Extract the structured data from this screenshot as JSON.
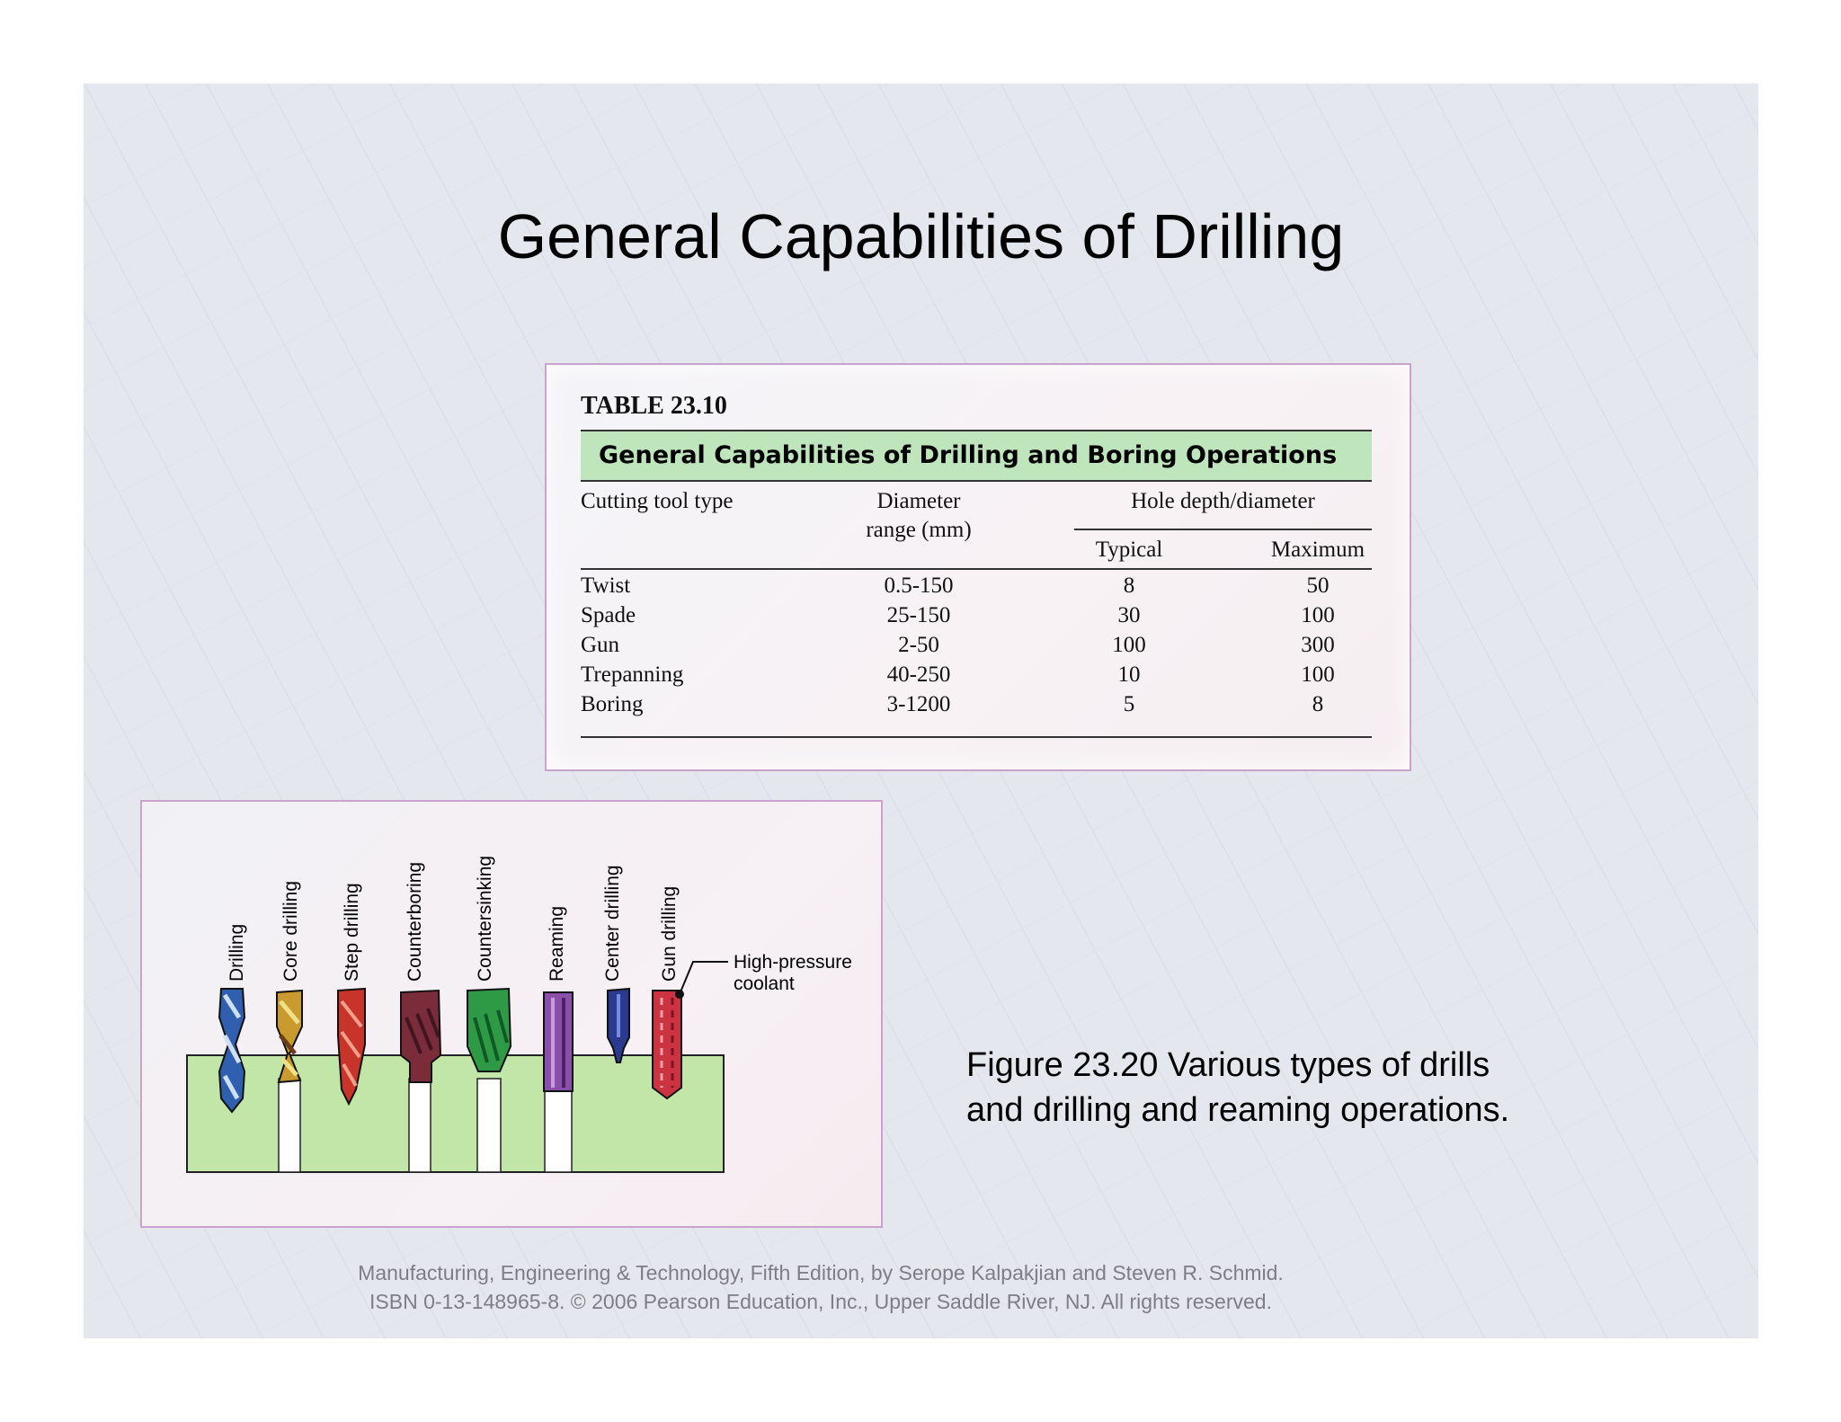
{
  "slide": {
    "title": "General Capabilities of Drilling",
    "caption_line1": "Figure 23.20  Various types of drills",
    "caption_line2": "and drilling and reaming operations.",
    "footer_line1": "Manufacturing, Engineering & Technology, Fifth Edition, by Serope Kalpakjian and Steven R. Schmid.",
    "footer_line2": "ISBN 0-13-148965-8. © 2006 Pearson Education, Inc., Upper Saddle River, NJ.  All rights reserved."
  },
  "table": {
    "number": "TABLE 23.10",
    "title": "General Capabilities of Drilling and Boring Operations",
    "headers": {
      "tool": "Cutting tool type",
      "diameter_1": "Diameter",
      "diameter_2": "range (mm)",
      "hole": "Hole depth/diameter",
      "typical": "Typical",
      "maximum": "Maximum"
    },
    "rows": [
      {
        "tool": "Twist",
        "diameter": "0.5-150",
        "typical": "8",
        "maximum": "50"
      },
      {
        "tool": "Spade",
        "diameter": "25-150",
        "typical": "30",
        "maximum": "100"
      },
      {
        "tool": "Gun",
        "diameter": "2-50",
        "typical": "100",
        "maximum": "300"
      },
      {
        "tool": "Trepanning",
        "diameter": "40-250",
        "typical": "10",
        "maximum": "100"
      },
      {
        "tool": "Boring",
        "diameter": "3-1200",
        "typical": "5",
        "maximum": "8"
      }
    ]
  },
  "figure": {
    "labels": [
      "Drilling",
      "Core drilling",
      "Step drilling",
      "Counterboring",
      "Countersinking",
      "Reaming",
      "Center drilling",
      "Gun drilling"
    ],
    "coolant_1": "High-pressure",
    "coolant_2": "coolant",
    "colors": {
      "workpiece": "#c2e6a8",
      "drilling": "#2f5fae",
      "core": "#c99a2e",
      "step": "#c8332a",
      "counterbore": "#7a2c3a",
      "countersink": "#2f9a46",
      "reaming": "#8a4fa8",
      "center": "#2a3a8e",
      "gun": "#cc3340"
    }
  }
}
